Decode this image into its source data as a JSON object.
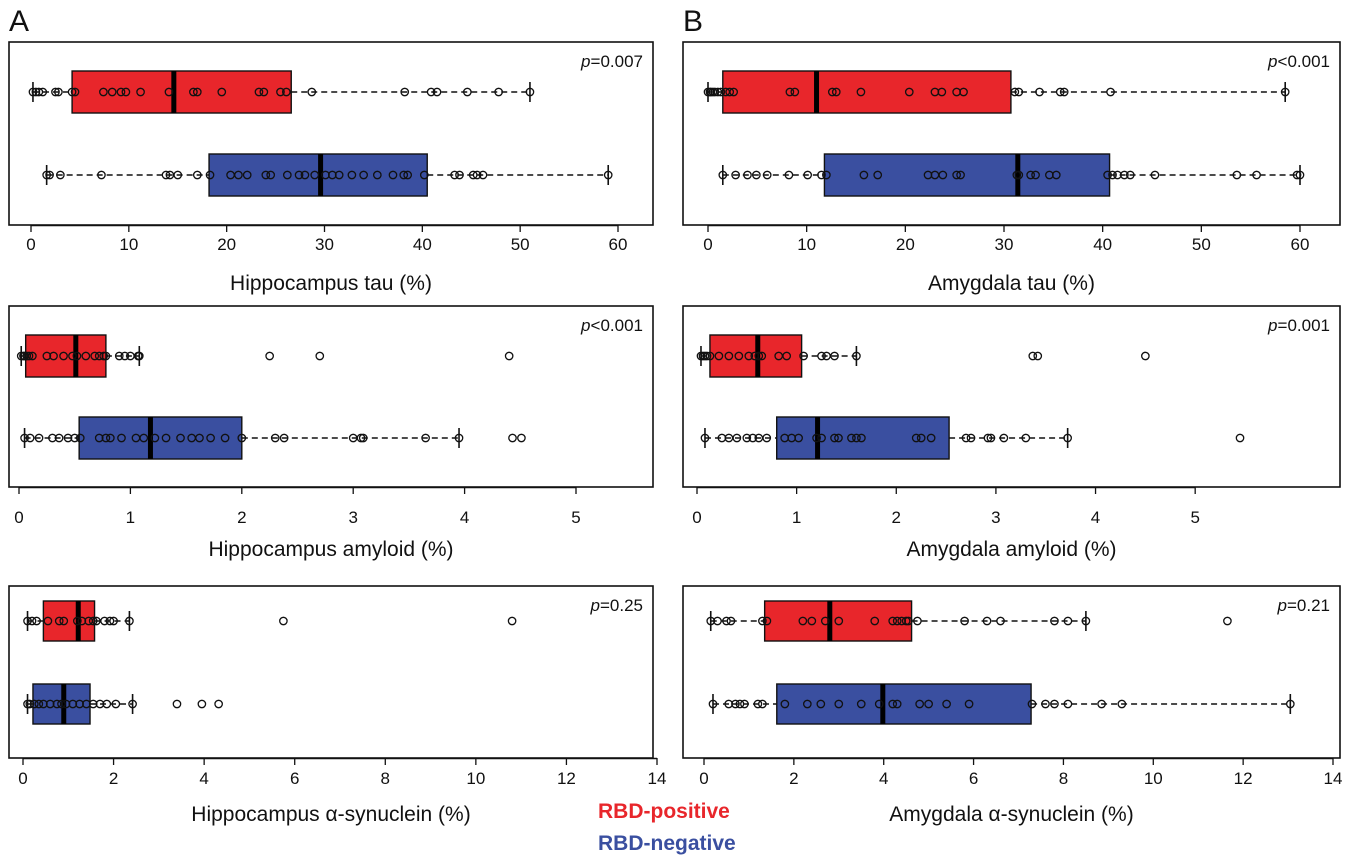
{
  "panel_labels": [
    "A",
    "B"
  ],
  "legend": [
    {
      "label": "RBD-positive",
      "color": "#e8262b"
    },
    {
      "label": "RBD-negative",
      "color": "#3a4fa0"
    }
  ],
  "colors": {
    "positive": "#e8262b",
    "negative": "#3a4fa0"
  },
  "chart_data": [
    {
      "type": "boxplot",
      "panel": "A",
      "row": 0,
      "orientation": "horizontal",
      "xlabel": "Hippocampus tau (%)",
      "p_prefix": "p",
      "p_rest": "=0.007",
      "xlim": [
        0,
        60
      ],
      "ticks": [
        0,
        10,
        20,
        30,
        40,
        50,
        60
      ],
      "grid": false,
      "series": [
        {
          "name": "RBD-positive",
          "color": "#e8262b",
          "whisker_low": 0.2,
          "q1": 4.2,
          "median": 14.6,
          "q3": 26.6,
          "whisker_high": 51.0,
          "points": [
            0.2,
            0.5,
            0.8,
            1.2,
            2.5,
            2.8,
            4.2,
            4.5,
            7.4,
            8.3,
            9.2,
            9.7,
            11.2,
            14.1,
            16.6,
            17.0,
            19.5,
            23.3,
            23.8,
            25.5,
            26.1,
            28.7,
            38.2,
            40.9,
            41.5,
            44.6,
            47.8,
            51.0
          ]
        },
        {
          "name": "RBD-negative",
          "color": "#3a4fa0",
          "whisker_low": 1.6,
          "q1": 18.2,
          "median": 29.6,
          "q3": 40.5,
          "whisker_high": 59.0,
          "points": [
            1.6,
            1.9,
            3.0,
            7.2,
            13.8,
            14.2,
            15.0,
            17.0,
            18.3,
            20.4,
            21.2,
            22.1,
            24.0,
            24.5,
            26.2,
            27.4,
            28.0,
            29.0,
            30.1,
            30.8,
            31.5,
            32.8,
            34.0,
            35.4,
            37.0,
            38.1,
            38.5,
            40.2,
            43.3,
            43.8,
            45.2,
            45.6,
            46.2,
            59.0
          ]
        }
      ]
    },
    {
      "type": "boxplot",
      "panel": "B",
      "row": 0,
      "orientation": "horizontal",
      "xlabel": "Amygdala tau (%)",
      "p_prefix": "p",
      "p_rest": "<0.001",
      "xlim": [
        0,
        60
      ],
      "ticks": [
        0,
        10,
        20,
        30,
        40,
        50,
        60
      ],
      "grid": false,
      "series": [
        {
          "name": "RBD-positive",
          "color": "#e8262b",
          "whisker_low": 0.0,
          "q1": 1.5,
          "median": 11.0,
          "q3": 30.7,
          "whisker_high": 58.5,
          "points": [
            0.0,
            0.2,
            0.3,
            0.5,
            0.7,
            1.0,
            1.3,
            1.8,
            2.2,
            2.6,
            8.3,
            8.8,
            12.6,
            13.0,
            15.5,
            20.4,
            23.0,
            23.7,
            25.2,
            25.9,
            31.1,
            31.5,
            33.6,
            35.7,
            36.1,
            40.8,
            58.5
          ]
        },
        {
          "name": "RBD-negative",
          "color": "#3a4fa0",
          "whisker_low": 1.5,
          "q1": 11.8,
          "median": 31.4,
          "q3": 40.7,
          "whisker_high": 60.0,
          "points": [
            1.5,
            2.8,
            4.0,
            4.9,
            6.0,
            8.2,
            10.1,
            11.5,
            12.0,
            15.8,
            17.2,
            22.3,
            23.0,
            23.8,
            25.2,
            25.6,
            31.3,
            31.5,
            32.7,
            33.2,
            34.6,
            35.3,
            40.5,
            41.0,
            41.5,
            42.2,
            42.8,
            45.3,
            53.6,
            55.6,
            59.7,
            60.0
          ]
        }
      ]
    },
    {
      "type": "boxplot",
      "panel": "A",
      "row": 1,
      "orientation": "horizontal",
      "xlabel": "Hippocampus amyloid (%)",
      "p_prefix": "p",
      "p_rest": "<0.001",
      "xlim": [
        0,
        5.0
      ],
      "ticks": [
        0,
        1,
        2,
        3,
        4,
        5
      ],
      "grid": false,
      "series": [
        {
          "name": "RBD-positive",
          "color": "#e8262b",
          "whisker_low": 0.02,
          "q1": 0.06,
          "median": 0.51,
          "q3": 0.78,
          "whisker_high": 1.08,
          "points": [
            0.02,
            0.04,
            0.05,
            0.07,
            0.09,
            0.12,
            0.25,
            0.31,
            0.4,
            0.48,
            0.52,
            0.6,
            0.68,
            0.72,
            0.76,
            0.78,
            0.9,
            0.95,
            1.0,
            1.07,
            1.08,
            2.25,
            2.7,
            4.4
          ]
        },
        {
          "name": "RBD-negative",
          "color": "#3a4fa0",
          "whisker_low": 0.05,
          "q1": 0.54,
          "median": 1.18,
          "q3": 2.0,
          "whisker_high": 3.95,
          "points": [
            0.05,
            0.1,
            0.18,
            0.3,
            0.36,
            0.44,
            0.5,
            0.55,
            0.72,
            0.78,
            0.82,
            0.92,
            1.05,
            1.12,
            1.22,
            1.32,
            1.45,
            1.55,
            1.62,
            1.72,
            1.85,
            2.0,
            2.3,
            2.38,
            3.0,
            3.07,
            3.09,
            3.65,
            3.95,
            4.43,
            4.51
          ]
        }
      ]
    },
    {
      "type": "boxplot",
      "panel": "B",
      "row": 1,
      "orientation": "horizontal",
      "xlabel": "Amygdala amyloid (%)",
      "p_prefix": "p",
      "p_rest": "=0.001",
      "xlim": [
        0,
        5.5
      ],
      "ticks": [
        0,
        1,
        2,
        3,
        4,
        5
      ],
      "grid": false,
      "series": [
        {
          "name": "RBD-positive",
          "color": "#e8262b",
          "whisker_low": 0.04,
          "q1": 0.13,
          "median": 0.61,
          "q3": 1.05,
          "whisker_high": 1.6,
          "points": [
            0.04,
            0.06,
            0.08,
            0.1,
            0.13,
            0.22,
            0.32,
            0.42,
            0.52,
            0.58,
            0.62,
            0.65,
            0.82,
            0.9,
            1.07,
            1.25,
            1.3,
            1.38,
            1.6,
            3.37,
            3.42,
            4.5
          ]
        },
        {
          "name": "RBD-negative",
          "color": "#3a4fa0",
          "whisker_low": 0.08,
          "q1": 0.8,
          "median": 1.21,
          "q3": 2.53,
          "whisker_high": 3.72,
          "points": [
            0.08,
            0.25,
            0.32,
            0.4,
            0.5,
            0.56,
            0.62,
            0.7,
            0.88,
            0.95,
            1.02,
            1.2,
            1.25,
            1.38,
            1.42,
            1.55,
            1.6,
            1.65,
            2.2,
            2.25,
            2.35,
            2.7,
            2.75,
            2.92,
            2.95,
            3.08,
            3.3,
            3.72,
            5.45
          ]
        }
      ]
    },
    {
      "type": "boxplot",
      "panel": "A",
      "row": 2,
      "orientation": "horizontal",
      "xlabel": "Hippocampus α-synuclein (%)",
      "xlabel_greek": "α",
      "xlabel_rest": "-synuclein (%)",
      "xlabel_prefix": "Hippocampus ",
      "p_prefix": "p",
      "p_rest": "=0.25",
      "xlim": [
        0,
        14
      ],
      "ticks": [
        0,
        2,
        4,
        6,
        8,
        10,
        12,
        14
      ],
      "grid": false,
      "series": [
        {
          "name": "RBD-positive",
          "color": "#e8262b",
          "whisker_low": 0.1,
          "q1": 0.45,
          "median": 1.22,
          "q3": 1.58,
          "whisker_high": 2.35,
          "points": [
            0.1,
            0.2,
            0.3,
            0.55,
            0.8,
            0.9,
            1.2,
            1.3,
            1.45,
            1.55,
            1.62,
            1.8,
            1.92,
            2.0,
            2.35,
            5.75,
            10.8
          ]
        },
        {
          "name": "RBD-negative",
          "color": "#3a4fa0",
          "whisker_low": 0.1,
          "q1": 0.22,
          "median": 0.9,
          "q3": 1.48,
          "whisker_high": 2.42,
          "points": [
            0.1,
            0.15,
            0.25,
            0.35,
            0.45,
            0.6,
            0.75,
            0.85,
            0.95,
            1.1,
            1.25,
            1.4,
            1.55,
            1.7,
            1.85,
            2.05,
            2.42,
            3.4,
            3.95,
            4.32
          ]
        }
      ]
    },
    {
      "type": "boxplot",
      "panel": "B",
      "row": 2,
      "orientation": "horizontal",
      "xlabel": "Amygdala α-synuclein (%)",
      "xlabel_greek": "α",
      "xlabel_rest": "-synuclein (%)",
      "xlabel_prefix": "Amygdala ",
      "p_prefix": "p",
      "p_rest": "=0.21",
      "xlim": [
        0,
        14
      ],
      "ticks": [
        0,
        2,
        4,
        6,
        8,
        10,
        12,
        14
      ],
      "grid": false,
      "series": [
        {
          "name": "RBD-positive",
          "color": "#e8262b",
          "whisker_low": 0.15,
          "q1": 1.35,
          "median": 2.8,
          "q3": 4.62,
          "whisker_high": 8.5,
          "points": [
            0.15,
            0.3,
            0.5,
            0.6,
            1.3,
            1.4,
            2.2,
            2.4,
            2.7,
            3.0,
            3.8,
            4.2,
            4.3,
            4.4,
            4.5,
            4.55,
            4.75,
            5.8,
            6.3,
            6.6,
            7.8,
            8.1,
            8.5,
            11.65
          ]
        },
        {
          "name": "RBD-negative",
          "color": "#3a4fa0",
          "whisker_low": 0.2,
          "q1": 1.62,
          "median": 3.98,
          "q3": 7.28,
          "whisker_high": 13.05,
          "points": [
            0.2,
            0.55,
            0.7,
            0.8,
            0.9,
            1.2,
            1.3,
            1.8,
            2.3,
            2.6,
            3.0,
            3.5,
            3.9,
            4.2,
            4.3,
            4.8,
            5.0,
            5.4,
            5.9,
            7.3,
            7.6,
            7.8,
            8.1,
            8.85,
            9.3,
            13.05
          ]
        }
      ]
    }
  ]
}
